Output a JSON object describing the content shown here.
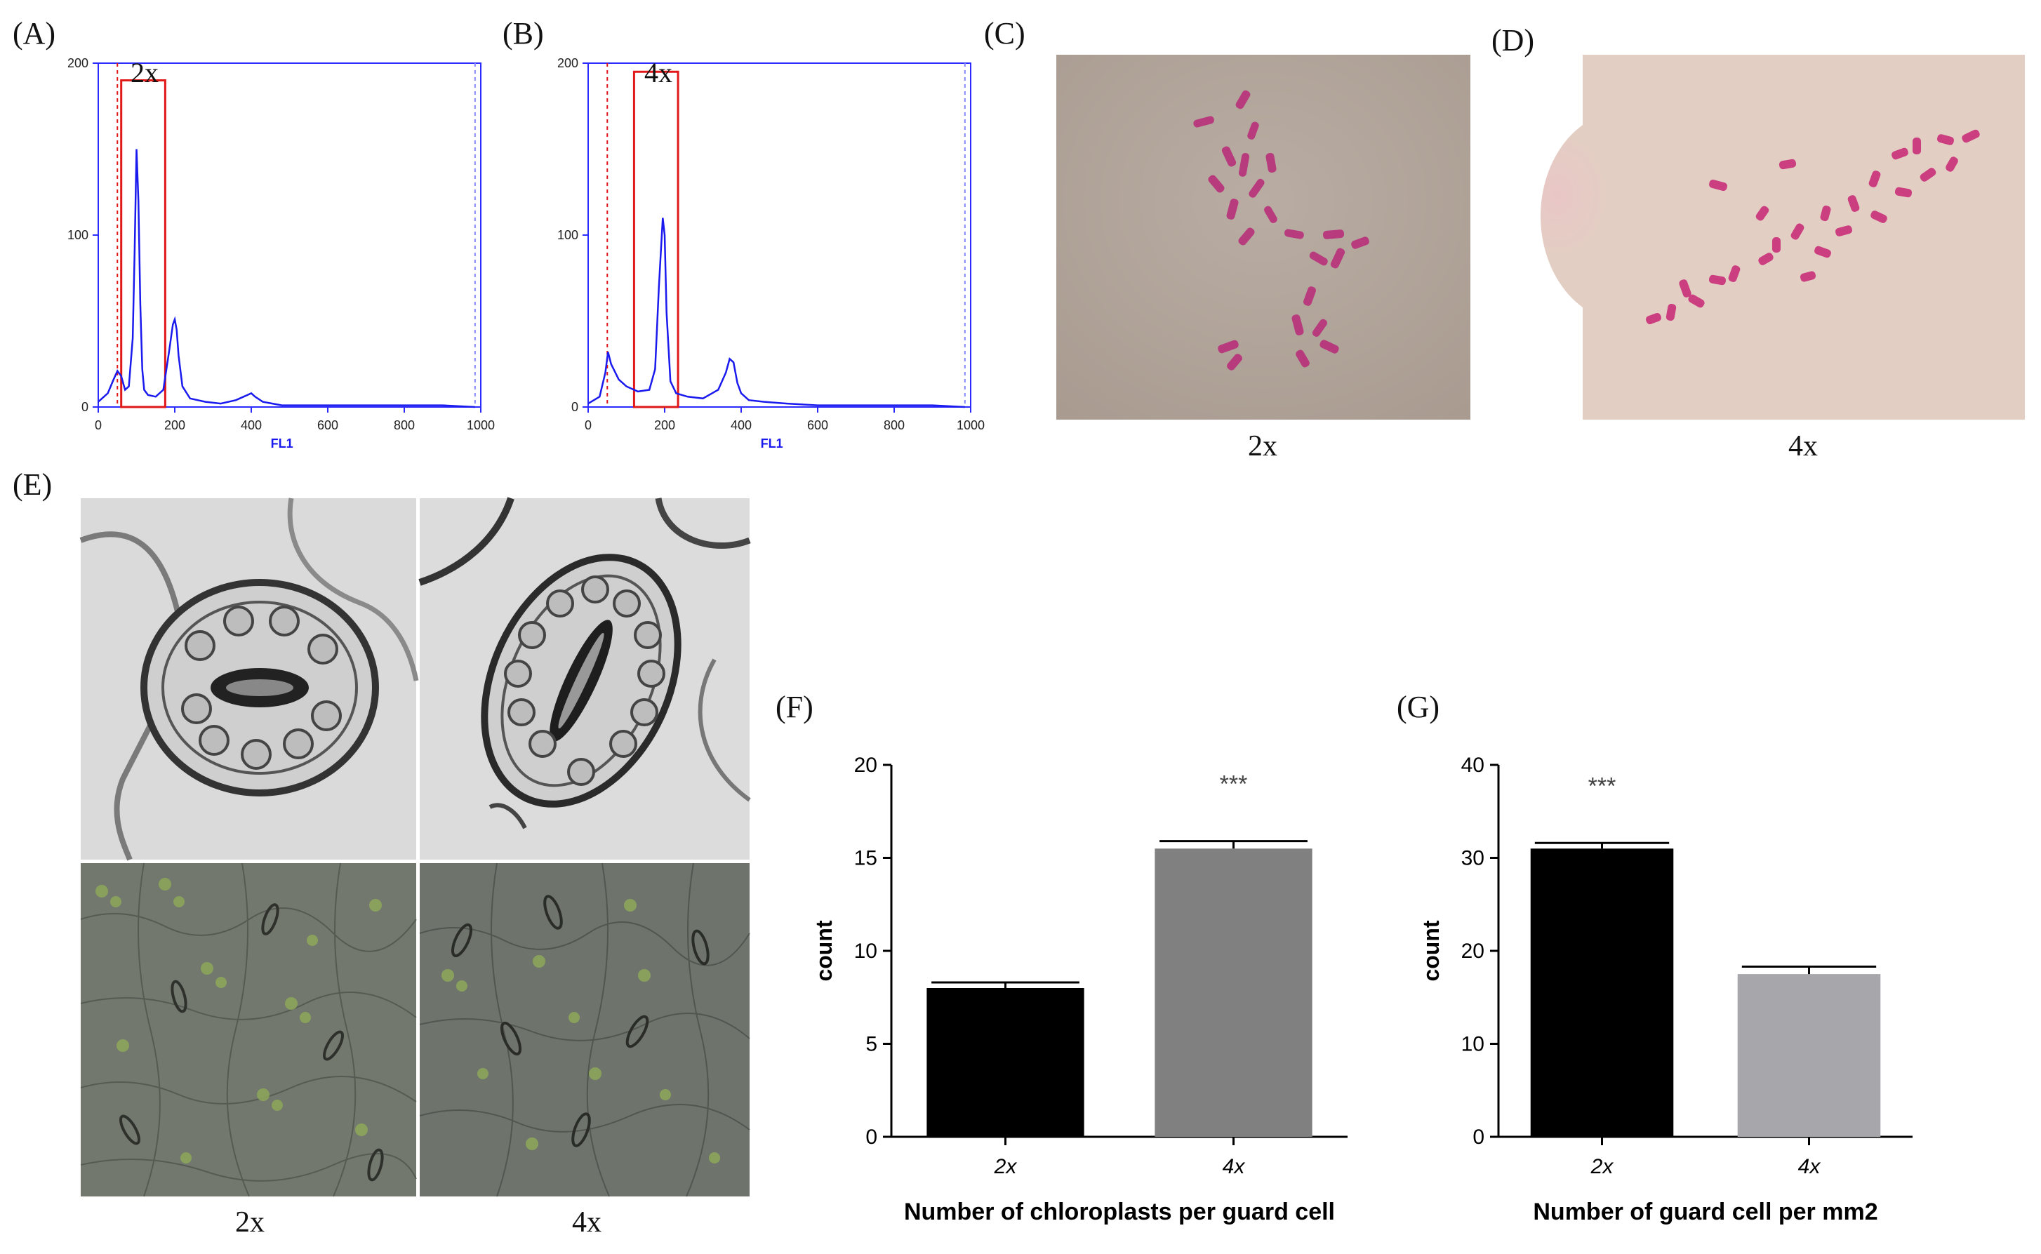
{
  "panels": {
    "A": {
      "label": "(A)",
      "gate_label": "2x"
    },
    "B": {
      "label": "(B)",
      "gate_label": "4x"
    },
    "C": {
      "label": "(C)",
      "caption": "2x"
    },
    "D": {
      "label": "(D)",
      "caption": "4x"
    },
    "E": {
      "label": "(E)",
      "captions": [
        "2x",
        "4x"
      ]
    },
    "F": {
      "label": "(F)"
    },
    "G": {
      "label": "(G)"
    }
  },
  "colors": {
    "histogram_frame": "#2b2bff",
    "histogram_trace": "#1a1aee",
    "gate": "#e01818",
    "cutoff_red": "#e01818",
    "cutoff_blue": "#8888ff",
    "bar_black": "#000000",
    "bar_grey_f": "#808080",
    "bar_grey_g": "#a6a6ab",
    "chromosome": "#b8307a",
    "slide_c": "#b3a69c",
    "slide_d": "#e3cec3"
  },
  "chart_data": [
    {
      "id": "A",
      "type": "line",
      "xlabel": "FL1",
      "ylabel": "",
      "xlim": [
        0,
        1000
      ],
      "ylim": [
        0,
        200
      ],
      "xticks": [
        0,
        200,
        400,
        600,
        800,
        1000
      ],
      "yticks": [
        0,
        100,
        200
      ],
      "gate": {
        "label": "2x",
        "x_range": [
          60,
          175
        ],
        "y_top": 190
      },
      "cutoffs": [
        50,
        985
      ],
      "series": [
        {
          "x": [
            0,
            25,
            40,
            50,
            60,
            70,
            80,
            90,
            95,
            100,
            105,
            110,
            115,
            120,
            130,
            150,
            170,
            185,
            195,
            200,
            205,
            210,
            220,
            240,
            280,
            320,
            360,
            380,
            390,
            400,
            410,
            430,
            480,
            600,
            700,
            800,
            900,
            985
          ],
          "values": [
            3,
            8,
            16,
            21,
            18,
            10,
            12,
            40,
            90,
            150,
            120,
            60,
            22,
            10,
            7,
            6,
            10,
            32,
            48,
            51,
            45,
            30,
            12,
            5,
            3,
            2,
            4,
            6,
            7,
            8,
            6,
            3,
            1,
            1,
            1,
            1,
            1,
            0
          ]
        }
      ]
    },
    {
      "id": "B",
      "type": "line",
      "xlabel": "FL1",
      "ylabel": "",
      "xlim": [
        0,
        1000
      ],
      "ylim": [
        0,
        200
      ],
      "xticks": [
        0,
        200,
        400,
        600,
        800,
        1000
      ],
      "yticks": [
        0,
        100,
        200
      ],
      "gate": {
        "label": "4x",
        "x_range": [
          120,
          235
        ],
        "y_top": 195
      },
      "cutoffs": [
        50,
        985
      ],
      "series": [
        {
          "x": [
            0,
            30,
            45,
            52,
            60,
            80,
            100,
            130,
            160,
            175,
            185,
            195,
            200,
            205,
            215,
            230,
            260,
            300,
            340,
            360,
            370,
            380,
            390,
            400,
            420,
            460,
            520,
            600,
            700,
            800,
            900,
            985
          ],
          "values": [
            2,
            6,
            20,
            32,
            25,
            16,
            12,
            9,
            10,
            22,
            70,
            110,
            100,
            55,
            15,
            8,
            6,
            5,
            10,
            20,
            28,
            26,
            14,
            8,
            4,
            3,
            2,
            1,
            1,
            1,
            1,
            0
          ]
        }
      ]
    },
    {
      "id": "F",
      "type": "bar",
      "categories": [
        "2x",
        "4x"
      ],
      "values": [
        8,
        15.5
      ],
      "errors": [
        0.3,
        0.4
      ],
      "significance": [
        "",
        "***"
      ],
      "ylabel": "count",
      "xlabel": "Number of chloroplasts  per guard cell",
      "ylim": [
        0,
        20
      ],
      "yticks": [
        0,
        5,
        10,
        15,
        20
      ],
      "grid": false
    },
    {
      "id": "G",
      "type": "bar",
      "categories": [
        "2x",
        "4x"
      ],
      "values": [
        31,
        17.5
      ],
      "errors": [
        0.6,
        0.8
      ],
      "significance": [
        "***",
        ""
      ],
      "ylabel": "count",
      "xlabel": "Number of guard cell  per mm2",
      "ylim": [
        0,
        40
      ],
      "yticks": [
        0,
        10,
        20,
        30,
        40
      ],
      "grid": false
    }
  ]
}
